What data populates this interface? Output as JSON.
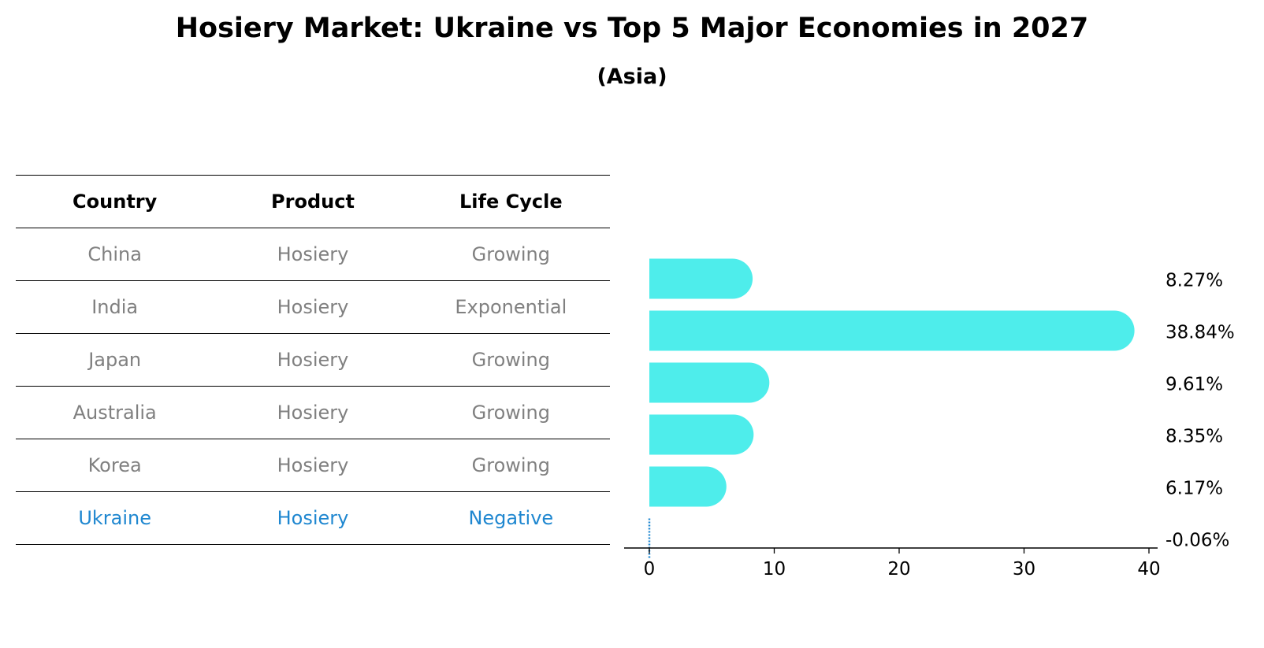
{
  "title": "Hosiery Market: Ukraine vs Top 5 Major Economies in 2027",
  "subtitle": "(Asia)",
  "table": {
    "headers": [
      "Country",
      "Product",
      "Life Cycle"
    ],
    "rows": [
      [
        "China",
        "Hosiery",
        "Growing"
      ],
      [
        "India",
        "Hosiery",
        "Exponential"
      ],
      [
        "Japan",
        "Hosiery",
        "Growing"
      ],
      [
        "Australia",
        "Hosiery",
        "Growing"
      ],
      [
        "Korea",
        "Hosiery",
        "Growing"
      ],
      [
        "Ukraine",
        "Hosiery",
        "Negative"
      ]
    ],
    "highlight_row": 5
  },
  "colors": {
    "bar": "#4eedeb",
    "highlight": "#1f87d0",
    "muted_text": "#808080"
  },
  "chart_data": {
    "type": "bar",
    "orientation": "horizontal",
    "categories": [
      "China",
      "India",
      "Japan",
      "Australia",
      "Korea",
      "Ukraine"
    ],
    "values": [
      8.27,
      38.84,
      9.61,
      8.35,
      6.17,
      -0.06
    ],
    "value_labels": [
      "8.27%",
      "38.84%",
      "9.61%",
      "8.35%",
      "6.17%",
      "-0.06%"
    ],
    "xlim": [
      -2,
      41
    ],
    "xticks": [
      0,
      10,
      20,
      30,
      40
    ],
    "xlabel": "",
    "ylabel": "",
    "grid": false,
    "legend": "none"
  }
}
